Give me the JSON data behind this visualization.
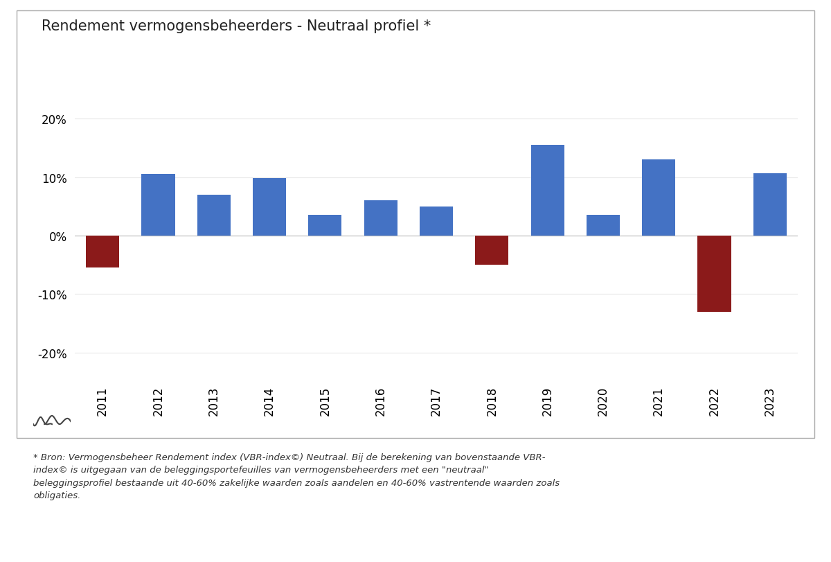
{
  "title": "Rendement vermogensbeheerders - Neutraal profiel *",
  "years": [
    2011,
    2012,
    2013,
    2014,
    2015,
    2016,
    2017,
    2018,
    2019,
    2020,
    2021,
    2022,
    2023
  ],
  "values": [
    -5.5,
    10.5,
    7.0,
    9.8,
    3.5,
    6.0,
    5.0,
    -5.0,
    15.5,
    3.5,
    13.0,
    -13.0,
    10.7
  ],
  "bar_color_positive": "#4472C4",
  "bar_color_negative": "#8B1A1A",
  "ylim_min": -25,
  "ylim_max": 25,
  "yticks": [
    -20,
    -10,
    0,
    10,
    20
  ],
  "background_color": "#FFFFFF",
  "chart_bg_color": "#FFFFFF",
  "title_fontsize": 15,
  "tick_fontsize": 12,
  "footnote_line1": "* Bron: Vermogensbeheer Rendement index (VBR-index©) Neutraal. Bij de berekening van bovenstaande VBR-",
  "footnote_line2": "index© is uitgegaan van de beleggingsportefeuilles van vermogensbeheerders met een \"neutraal\"",
  "footnote_line3": "beleggingsprofiel bestaande uit 40-60% zakelijke waarden zoals aandelen en 40-60% vastrentende waarden zoals",
  "footnote_line4": "obligaties.",
  "grid_color": "#E8E8E8",
  "outer_border_color": "#AAAAAA"
}
